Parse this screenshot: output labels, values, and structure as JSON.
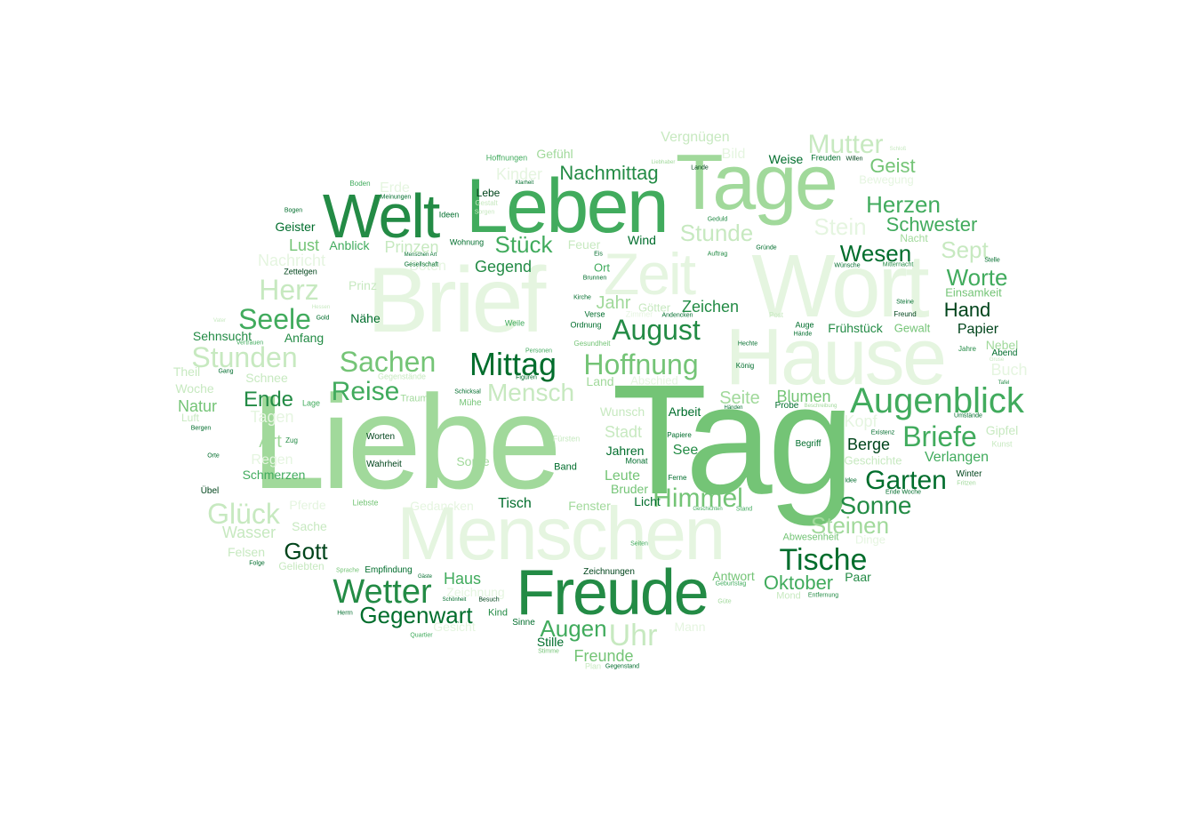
{
  "word_cloud": {
    "palette": [
      "#00441b",
      "#006d2c",
      "#238b45",
      "#41ab5d",
      "#74c476",
      "#a1d99b",
      "#c7e9c0",
      "#e5f5e0"
    ],
    "words": [
      {
        "text": "Tag",
        "shade": 4
      },
      {
        "text": "Liebe",
        "shade": 5
      },
      {
        "text": "Wort",
        "shade": 7
      },
      {
        "text": "Hause",
        "shade": 7
      },
      {
        "text": "Brief",
        "shade": 7
      },
      {
        "text": "Menschen",
        "shade": 7
      },
      {
        "text": "Leben",
        "shade": 3
      },
      {
        "text": "Tage",
        "shade": 5
      },
      {
        "text": "Freude",
        "shade": 2
      },
      {
        "text": "Welt",
        "shade": 2
      },
      {
        "text": "Zeit",
        "shade": 7
      },
      {
        "text": "Augenblick",
        "shade": 3
      },
      {
        "text": "Mittag",
        "shade": 1
      },
      {
        "text": "Wetter",
        "shade": 2
      },
      {
        "text": "Tische",
        "shade": 1
      },
      {
        "text": "Hoffnung",
        "shade": 4
      },
      {
        "text": "August",
        "shade": 2
      },
      {
        "text": "Briefe",
        "shade": 3
      },
      {
        "text": "Sachen",
        "shade": 4
      },
      {
        "text": "Garten",
        "shade": 1
      },
      {
        "text": "Himmel",
        "shade": 4
      },
      {
        "text": "Mutter",
        "shade": 6
      },
      {
        "text": "Herz",
        "shade": 6
      },
      {
        "text": "Seele",
        "shade": 3
      },
      {
        "text": "Gegenwart",
        "shade": 1
      },
      {
        "text": "Uhr",
        "shade": 6
      },
      {
        "text": "Reise",
        "shade": 3
      },
      {
        "text": "Mensch",
        "shade": 6
      },
      {
        "text": "Stunden",
        "shade": 6
      },
      {
        "text": "Glück",
        "shade": 6
      },
      {
        "text": "Sonne",
        "shade": 2
      },
      {
        "text": "Steinen",
        "shade": 5
      },
      {
        "text": "Worte",
        "shade": 3
      },
      {
        "text": "Wesen",
        "shade": 1
      },
      {
        "text": "Herzen",
        "shade": 3
      },
      {
        "text": "Oktober",
        "shade": 3
      },
      {
        "text": "Gott",
        "shade": 0
      },
      {
        "text": "Stunde",
        "shade": 6
      },
      {
        "text": "Stein",
        "shade": 7
      },
      {
        "text": "Augen",
        "shade": 3
      },
      {
        "text": "Nachmittag",
        "shade": 2
      },
      {
        "text": "Stück",
        "shade": 3
      },
      {
        "text": "Geist",
        "shade": 4
      },
      {
        "text": "Sept",
        "shade": 6
      },
      {
        "text": "Schwester",
        "shade": 3
      },
      {
        "text": "Ende",
        "shade": 2
      },
      {
        "text": "Hand",
        "shade": 0
      },
      {
        "text": "Zeichen",
        "shade": 2
      },
      {
        "text": "Jahr",
        "shade": 5
      },
      {
        "text": "Seite",
        "shade": 5
      },
      {
        "text": "Blumen",
        "shade": 4
      },
      {
        "text": "Freunde",
        "shade": 4
      },
      {
        "text": "Haus",
        "shade": 3
      },
      {
        "text": "Lust",
        "shade": 4
      },
      {
        "text": "Gegend",
        "shade": 2
      },
      {
        "text": "Prinzen",
        "shade": 6
      },
      {
        "text": "Wasser",
        "shade": 6
      },
      {
        "text": "Natur",
        "shade": 4
      },
      {
        "text": "Berge",
        "shade": 0
      },
      {
        "text": "Verlangen",
        "shade": 3
      },
      {
        "text": "Papier",
        "shade": 0
      },
      {
        "text": "Tagen",
        "shade": 7
      },
      {
        "text": "Art",
        "shade": 5
      },
      {
        "text": "Kinder",
        "shade": 7
      },
      {
        "text": "Erde",
        "shade": 7
      },
      {
        "text": "Nachricht",
        "shade": 7
      },
      {
        "text": "Boten",
        "shade": 7
      },
      {
        "text": "Bild",
        "shade": 7
      },
      {
        "text": "Vergnügen",
        "shade": 6
      },
      {
        "text": "Gefühl",
        "shade": 5
      },
      {
        "text": "Weise",
        "shade": 1
      },
      {
        "text": "Stadt",
        "shade": 6
      },
      {
        "text": "Wunsch",
        "shade": 6
      },
      {
        "text": "Arbeit",
        "shade": 1
      },
      {
        "text": "Jahren",
        "shade": 1
      },
      {
        "text": "See",
        "shade": 2
      },
      {
        "text": "Leute",
        "shade": 4
      },
      {
        "text": "Bruder",
        "shade": 4
      },
      {
        "text": "Licht",
        "shade": 1
      },
      {
        "text": "Fenster",
        "shade": 5
      },
      {
        "text": "Tisch",
        "shade": 1
      },
      {
        "text": "Sorge",
        "shade": 5
      },
      {
        "text": "Gedancken",
        "shade": 7
      },
      {
        "text": "Schmerzen",
        "shade": 3
      },
      {
        "text": "Sache",
        "shade": 6
      },
      {
        "text": "Felsen",
        "shade": 6
      },
      {
        "text": "Pferde",
        "shade": 7
      },
      {
        "text": "Regen",
        "shade": 7
      },
      {
        "text": "Anfang",
        "shade": 2
      },
      {
        "text": "Sehnsucht",
        "shade": 2
      },
      {
        "text": "Nähe",
        "shade": 1
      },
      {
        "text": "Prinz",
        "shade": 6
      },
      {
        "text": "Anblick",
        "shade": 3
      },
      {
        "text": "Geister",
        "shade": 1
      },
      {
        "text": "Feuer",
        "shade": 6
      },
      {
        "text": "Wind",
        "shade": 1
      },
      {
        "text": "Ort",
        "shade": 3
      },
      {
        "text": "Götter",
        "shade": 6
      },
      {
        "text": "Land",
        "shade": 5
      },
      {
        "text": "Abschied",
        "shade": 7
      },
      {
        "text": "Frühstück",
        "shade": 2
      },
      {
        "text": "Gewalt",
        "shade": 4
      },
      {
        "text": "Nebel",
        "shade": 5
      },
      {
        "text": "Abend",
        "shade": 1
      },
      {
        "text": "Buch",
        "shade": 7
      },
      {
        "text": "Einsamkeit",
        "shade": 4
      },
      {
        "text": "Gipfel",
        "shade": 6
      },
      {
        "text": "Geschichte",
        "shade": 6
      },
      {
        "text": "Kopf",
        "shade": 7
      },
      {
        "text": "Dinge",
        "shade": 7
      },
      {
        "text": "Winter",
        "shade": 0
      },
      {
        "text": "Paar",
        "shade": 2
      },
      {
        "text": "Antwort",
        "shade": 4
      },
      {
        "text": "Mond",
        "shade": 6
      },
      {
        "text": "Mann",
        "shade": 7
      },
      {
        "text": "Zeichnung",
        "shade": 7
      },
      {
        "text": "Gesicht",
        "shade": 7
      },
      {
        "text": "Zeichnungen",
        "shade": 0
      },
      {
        "text": "Stille",
        "shade": 1
      },
      {
        "text": "Kind",
        "shade": 2
      },
      {
        "text": "Sinne",
        "shade": 1
      },
      {
        "text": "Empfindung",
        "shade": 1
      },
      {
        "text": "Geliebten",
        "shade": 6
      },
      {
        "text": "Theil",
        "shade": 6
      },
      {
        "text": "Woche",
        "shade": 6
      },
      {
        "text": "Luft",
        "shade": 6
      },
      {
        "text": "Schnee",
        "shade": 6
      },
      {
        "text": "Lebe",
        "shade": 0
      },
      {
        "text": "Ideen",
        "shade": 1
      },
      {
        "text": "Wohnung",
        "shade": 1
      },
      {
        "text": "Hoffnungen",
        "shade": 3
      },
      {
        "text": "Zettelgen",
        "shade": 0
      },
      {
        "text": "Gegenstände",
        "shade": 6
      },
      {
        "text": "Traum",
        "shade": 5
      },
      {
        "text": "Mühe",
        "shade": 4
      },
      {
        "text": "Worten",
        "shade": 0
      },
      {
        "text": "Wahrheit",
        "shade": 0
      },
      {
        "text": "Band",
        "shade": 1
      },
      {
        "text": "Monat",
        "shade": 1
      },
      {
        "text": "Begriff",
        "shade": 1
      },
      {
        "text": "Abwesenheit",
        "shade": 4
      },
      {
        "text": "Übel",
        "shade": 0
      },
      {
        "text": "Liebste",
        "shade": 4
      },
      {
        "text": "Lage",
        "shade": 3
      },
      {
        "text": "Zug",
        "shade": 2
      },
      {
        "text": "Weile",
        "shade": 3
      },
      {
        "text": "Ordnung",
        "shade": 1
      },
      {
        "text": "Verse",
        "shade": 1
      },
      {
        "text": "Zimmer",
        "shade": 7
      },
      {
        "text": "Auge",
        "shade": 1
      },
      {
        "text": "Freund",
        "shade": 0
      },
      {
        "text": "Jahre",
        "shade": 2
      },
      {
        "text": "Probe",
        "shade": 1
      },
      {
        "text": "Papiere",
        "shade": 1
      },
      {
        "text": "Ferne",
        "shade": 1
      },
      {
        "text": "Idee",
        "shade": 1
      },
      {
        "text": "Bewegung",
        "shade": 7
      },
      {
        "text": "Nacht",
        "shade": 5
      },
      {
        "text": "Freuden",
        "shade": 1
      },
      {
        "text": "Willen",
        "shade": 0
      },
      {
        "text": "Lande",
        "shade": 0
      },
      {
        "text": "Geduld",
        "shade": 2
      },
      {
        "text": "Auftrag",
        "shade": 2
      },
      {
        "text": "Gründe",
        "shade": 1
      },
      {
        "text": "Wünsche",
        "shade": 1
      },
      {
        "text": "Mitternacht",
        "shade": 2
      },
      {
        "text": "Steine",
        "shade": 1
      },
      {
        "text": "Post",
        "shade": 6
      },
      {
        "text": "Hechte",
        "shade": 1
      },
      {
        "text": "König",
        "shade": 1
      },
      {
        "text": "Hände",
        "shade": 1
      },
      {
        "text": "Kirche",
        "shade": 1
      },
      {
        "text": "Andencken",
        "shade": 1
      },
      {
        "text": "Gesundheit",
        "shade": 4
      },
      {
        "text": "Personen",
        "shade": 3
      },
      {
        "text": "Figuren",
        "shade": 1
      },
      {
        "text": "Schicksal",
        "shade": 1
      },
      {
        "text": "Gang",
        "shade": 1
      },
      {
        "text": "Vertrauen",
        "shade": 3
      },
      {
        "text": "Gold",
        "shade": 1
      },
      {
        "text": "Bergen",
        "shade": 1
      },
      {
        "text": "Orte",
        "shade": 1
      },
      {
        "text": "Folge",
        "shade": 1
      },
      {
        "text": "Herrn",
        "shade": 1
      },
      {
        "text": "Sprache",
        "shade": 4
      },
      {
        "text": "Gesellschaft",
        "shade": 1
      },
      {
        "text": "Meinungen",
        "shade": 1
      },
      {
        "text": "Bogen",
        "shade": 1
      },
      {
        "text": "Boden",
        "shade": 3
      },
      {
        "text": "Gestalt",
        "shade": 6
      },
      {
        "text": "Sorgen",
        "shade": 6
      },
      {
        "text": "Klarheit",
        "shade": 1
      },
      {
        "text": "Menschen Art",
        "shade": 1
      },
      {
        "text": "Brunnen",
        "shade": 1
      },
      {
        "text": "Eis",
        "shade": 1
      },
      {
        "text": "Liebhaber",
        "shade": 5
      },
      {
        "text": "Gäste",
        "shade": 1
      },
      {
        "text": "Schönheit",
        "shade": 1
      },
      {
        "text": "Besuch",
        "shade": 0
      },
      {
        "text": "Quartier",
        "shade": 3
      },
      {
        "text": "Stimme",
        "shade": 4
      },
      {
        "text": "Gegenstand",
        "shade": 1
      },
      {
        "text": "Plan",
        "shade": 6
      },
      {
        "text": "Geburtstag",
        "shade": 3
      },
      {
        "text": "Güte",
        "shade": 5
      },
      {
        "text": "Entfernung",
        "shade": 2
      },
      {
        "text": "Ende Woche",
        "shade": 1
      },
      {
        "text": "Beschreibung",
        "shade": 5
      },
      {
        "text": "Umstände",
        "shade": 1
      },
      {
        "text": "Existenz",
        "shade": 1
      },
      {
        "text": "Fritzen",
        "shade": 5
      },
      {
        "text": "Kunst",
        "shade": 6
      },
      {
        "text": "Stelle",
        "shade": 1
      },
      {
        "text": "Tafel",
        "shade": 2
      },
      {
        "text": "Gruse",
        "shade": 6
      },
      {
        "text": "Stand",
        "shade": 3
      },
      {
        "text": "Geschichten",
        "shade": 3
      },
      {
        "text": "Seiten",
        "shade": 3
      },
      {
        "text": "Fürsten",
        "shade": 6
      },
      {
        "text": "Händen",
        "shade": 1
      },
      {
        "text": "Schloß",
        "shade": 6
      },
      {
        "text": "Hessen",
        "shade": 6
      },
      {
        "text": "Vater",
        "shade": 6
      }
    ]
  }
}
